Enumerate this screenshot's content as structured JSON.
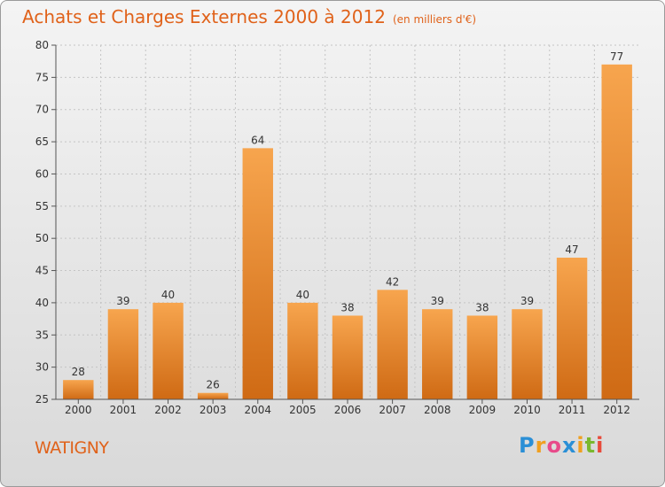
{
  "title": "Achats et Charges Externes 2000 à 2012",
  "unit": "(en milliers d'€)",
  "commune": "WATIGNY",
  "brand": {
    "letters": [
      "P",
      "r",
      "o",
      "x",
      "i",
      "t",
      "i"
    ],
    "colors": [
      "#2a8fd6",
      "#f0a020",
      "#e84a8a",
      "#2a8fd6",
      "#f0a020",
      "#7ab82e",
      "#e84a3a"
    ]
  },
  "colors": {
    "bar": "#f0922e",
    "accent": "#e0621a"
  },
  "chart_data": {
    "type": "bar",
    "title": "Achats et Charges Externes 2000 à 2012",
    "subtitle": "(en milliers d'€)",
    "categories": [
      "2000",
      "2001",
      "2002",
      "2003",
      "2004",
      "2005",
      "2006",
      "2007",
      "2008",
      "2009",
      "2010",
      "2011",
      "2012"
    ],
    "values": [
      28,
      39,
      40,
      26,
      64,
      40,
      38,
      42,
      39,
      38,
      39,
      47,
      77
    ],
    "yticks": [
      25,
      30,
      35,
      40,
      45,
      50,
      55,
      60,
      65,
      70,
      75,
      80
    ],
    "ylim": [
      25,
      80
    ],
    "grid": true
  }
}
